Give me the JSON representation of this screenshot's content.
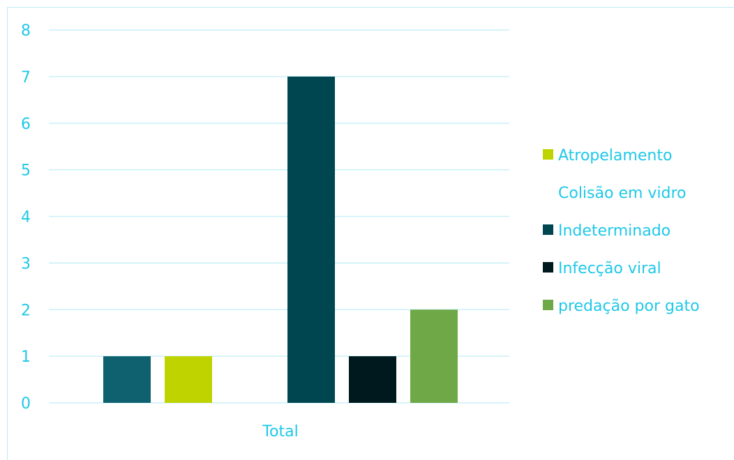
{
  "chart_data": {
    "type": "bar",
    "categories": [
      "Total"
    ],
    "series": [
      {
        "name": "",
        "values": [
          1
        ],
        "color": "#0f6170"
      },
      {
        "name": "Atropelamento",
        "values": [
          1
        ],
        "color": "#bfd300"
      },
      {
        "name": "Colisão em vidro",
        "values": [
          0
        ],
        "color": "#ffffff"
      },
      {
        "name": "Indeterminado",
        "values": [
          7
        ],
        "color": "#004650"
      },
      {
        "name": "Infecção viral",
        "values": [
          1
        ],
        "color": "#00191e"
      },
      {
        "name": "predação por gato",
        "values": [
          2
        ],
        "color": "#6fa947"
      }
    ],
    "yticks": [
      "0",
      "1",
      "2",
      "3",
      "4",
      "5",
      "6",
      "7",
      "8"
    ],
    "ylim": [
      0,
      8
    ],
    "grid": true,
    "legend_position": "right",
    "text_color": "#1fc8e8",
    "grid_color": "#c9f0f8"
  }
}
